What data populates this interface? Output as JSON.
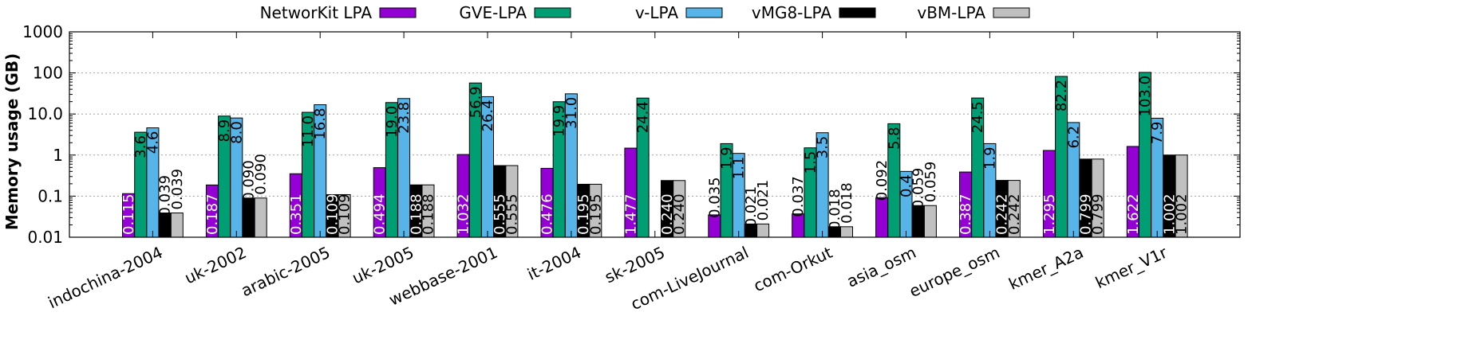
{
  "chart_data": {
    "type": "bar",
    "yscale": "log",
    "ylabel": "Memory usage (GB)",
    "ylim": [
      0.01,
      1000
    ],
    "yticks": [
      "1000",
      "100",
      "10.0",
      "1",
      "0.1",
      "0.01"
    ],
    "grid": true,
    "legend_position": "top",
    "categories": [
      "indochina-2004",
      "uk-2002",
      "arabic-2005",
      "uk-2005",
      "webbase-2001",
      "it-2004",
      "sk-2005",
      "com-LiveJournal",
      "com-Orkut",
      "asia_osm",
      "europe_osm",
      "kmer_A2a",
      "kmer_V1r"
    ],
    "series": [
      {
        "name": "NetworKit LPA",
        "color": "#9400d3",
        "values": [
          0.115,
          0.187,
          0.351,
          0.494,
          1.032,
          0.476,
          1.477,
          0.035,
          0.037,
          0.092,
          0.387,
          1.295,
          1.622
        ],
        "labels": [
          "0.115",
          "0.187",
          "0.351",
          "0.494",
          "1.032",
          "0.476",
          "1.477",
          "0.035",
          "0.037",
          "0.092",
          "0.387",
          "1.295",
          "1.622"
        ]
      },
      {
        "name": "GVE-LPA",
        "color": "#009e73",
        "values": [
          3.6,
          8.9,
          11.0,
          19.0,
          56.9,
          19.9,
          24.4,
          1.9,
          1.5,
          5.8,
          24.5,
          82.2,
          103.0
        ],
        "labels": [
          "3.6",
          "8.9",
          "11.0",
          "19.0",
          "56.9",
          "19.9",
          "24.4",
          "1.9",
          "1.5",
          "5.8",
          "24.5",
          "82.2",
          "103.0"
        ]
      },
      {
        "name": "v-LPA",
        "color": "#56b4e9",
        "values": [
          4.6,
          8.0,
          16.8,
          23.8,
          26.4,
          31.0,
          null,
          1.1,
          3.5,
          0.4,
          1.9,
          6.2,
          7.9
        ],
        "labels": [
          "4.6",
          "8.0",
          "16.8",
          "23.8",
          "26.4",
          "31.0",
          null,
          "1.1",
          "3.5",
          "0.4",
          "1.9",
          "6.2",
          "7.9"
        ]
      },
      {
        "name": "vMG8-LPA",
        "color": "#000000",
        "values": [
          0.039,
          0.09,
          0.109,
          0.188,
          0.555,
          0.195,
          0.24,
          0.021,
          0.018,
          0.059,
          0.242,
          0.799,
          1.002
        ],
        "labels": [
          "0.039",
          "0.090",
          "0.109",
          "0.188",
          "0.555",
          "0.195",
          "0.240",
          "0.021",
          "0.018",
          "0.059",
          "0.242",
          "0.799",
          "1.002"
        ]
      },
      {
        "name": "vBM-LPA",
        "color": "#c0c0c0",
        "values": [
          0.039,
          0.09,
          0.109,
          0.188,
          0.555,
          0.195,
          0.24,
          0.021,
          0.018,
          0.059,
          0.242,
          0.799,
          1.002
        ],
        "labels": [
          "0.039",
          "0.090",
          "0.109",
          "0.188",
          "0.555",
          "0.195",
          "0.240",
          "0.021",
          "0.018",
          "0.059",
          "0.242",
          "0.799",
          "1.002"
        ]
      }
    ]
  }
}
